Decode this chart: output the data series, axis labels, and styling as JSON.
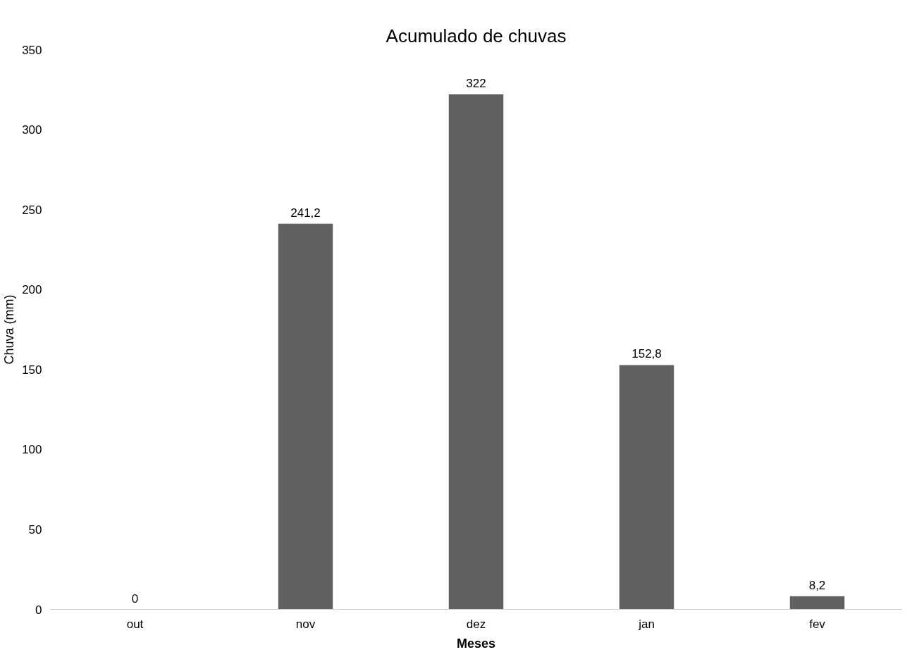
{
  "chart_data": {
    "type": "bar",
    "title": "Acumulado de chuvas",
    "xlabel": "Meses",
    "ylabel": "Chuva (mm)",
    "categories": [
      "out",
      "nov",
      "dez",
      "jan",
      "fev"
    ],
    "values": [
      0,
      241.2,
      322,
      152.8,
      8.2
    ],
    "value_labels": [
      "0",
      "241,2",
      "322",
      "152,8",
      "8,2"
    ],
    "color": "#606060",
    "ylim": [
      0,
      350
    ],
    "yticks": [
      0,
      50,
      100,
      150,
      200,
      250,
      300,
      350
    ],
    "grid": false
  }
}
